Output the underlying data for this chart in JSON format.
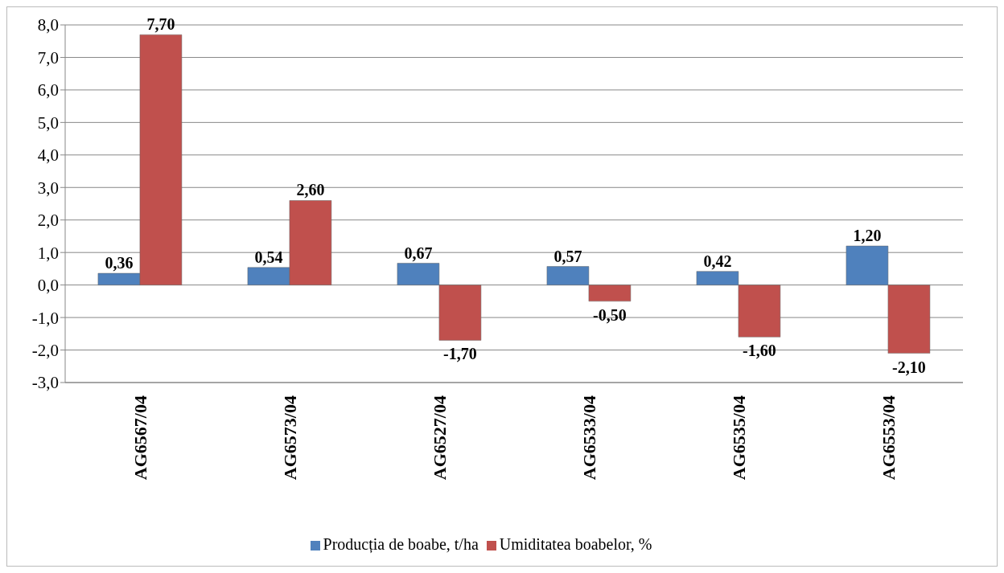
{
  "chart_data": {
    "type": "bar",
    "categories": [
      "AG6567/04",
      "AG6573/04",
      "AG6527/04",
      "AG6533/04",
      "AG6535/04",
      "AG6553/04"
    ],
    "series": [
      {
        "name": "Producția de boabe, t/ha",
        "color": "#4f81bd",
        "values": [
          0.36,
          0.54,
          0.67,
          0.57,
          0.42,
          1.2
        ],
        "value_labels": [
          "0,36",
          "0,54",
          "0,67",
          "0,57",
          "0,42",
          "1,20"
        ]
      },
      {
        "name": "Umiditatea boabelor, %",
        "color": "#c0504d",
        "values": [
          7.7,
          2.6,
          -1.7,
          -0.5,
          -1.6,
          -2.1
        ],
        "value_labels": [
          "7,70",
          "2,60",
          "-1,70",
          "-0,50",
          "-1,60",
          "-2,10"
        ]
      }
    ],
    "ylim": [
      -3,
      8
    ],
    "yticks": [
      {
        "value": -3,
        "label": "-3,0"
      },
      {
        "value": -2,
        "label": "-2,0"
      },
      {
        "value": -1,
        "label": "-1,0"
      },
      {
        "value": 0,
        "label": "0,0"
      },
      {
        "value": 1,
        "label": "1,0"
      },
      {
        "value": 2,
        "label": "2,0"
      },
      {
        "value": 3,
        "label": "3,0"
      },
      {
        "value": 4,
        "label": "4,0"
      },
      {
        "value": 5,
        "label": "5,0"
      },
      {
        "value": 6,
        "label": "6,0"
      },
      {
        "value": 7,
        "label": "7,0"
      },
      {
        "value": 8,
        "label": "8,0"
      }
    ],
    "grid": "y",
    "legend": "bottom"
  }
}
